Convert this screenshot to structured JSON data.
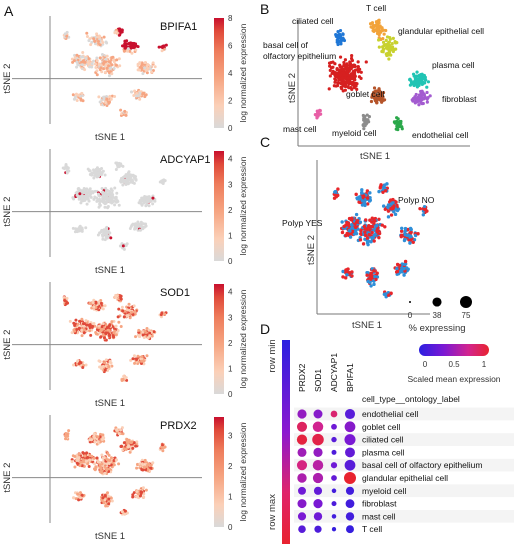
{
  "chart_data": [
    {
      "panel": "A",
      "type": "scatter",
      "xlabel": "tSNE 1",
      "ylabel": "tSNE 2",
      "colorbar_label": "log normalized expression",
      "colormap": [
        "#d9d9d9",
        "#fbd0b8",
        "#f6a582",
        "#ee7c5b",
        "#e04a3a",
        "#c8102e"
      ],
      "facets": [
        {
          "gene": "BPIFA1",
          "color_ticks": [
            0,
            2,
            4,
            6,
            8
          ],
          "color_max": 8
        },
        {
          "gene": "ADCYAP1",
          "color_ticks": [
            0,
            1,
            2,
            3,
            4
          ],
          "color_max": 4.3
        },
        {
          "gene": "SOD1",
          "color_ticks": [
            0,
            1,
            2,
            3,
            4
          ],
          "color_max": 4.3
        },
        {
          "gene": "PRDX2",
          "color_ticks": [
            0,
            1,
            2,
            3
          ],
          "color_max": 3.6
        }
      ]
    },
    {
      "panel": "B",
      "type": "scatter",
      "xlabel": "tSNE 1",
      "ylabel": "tSNE 2",
      "groups": [
        {
          "name": "ciliated cell",
          "color": "#1f77d6"
        },
        {
          "name": "T cell",
          "color": "#f2a33a"
        },
        {
          "name": "glandular epithelial cell",
          "color": "#c8d12f"
        },
        {
          "name": "basal cell of olfactory epithelium",
          "color": "#d62020"
        },
        {
          "name": "plasma cell",
          "color": "#21c4b4"
        },
        {
          "name": "goblet cell",
          "color": "#b5542a"
        },
        {
          "name": "fibroblast",
          "color": "#a35bd0"
        },
        {
          "name": "mast cell",
          "color": "#e85fa6"
        },
        {
          "name": "myeloid cell",
          "color": "#8c8c8c"
        },
        {
          "name": "endothelial cell",
          "color": "#2aa84a"
        }
      ]
    },
    {
      "panel": "C",
      "type": "scatter",
      "xlabel": "tSNE 1",
      "ylabel": "tSNE 2",
      "groups": [
        {
          "name": "Polyp YES",
          "color": "#e8262a"
        },
        {
          "name": "Polyp NO",
          "color": "#2f8fd8"
        }
      ],
      "size_legend": {
        "title": "% expressing",
        "values": [
          0,
          38,
          75
        ]
      }
    },
    {
      "panel": "D",
      "type": "dotplot",
      "genes": [
        "PRDX2",
        "SOD1",
        "ADCYAP1",
        "BPIFA1"
      ],
      "row_header": "cell_type__ontology_label",
      "cell_types": [
        "endothelial cell",
        "goblet cell",
        "ciliated cell",
        "plasma cell",
        "basal cell of olfactory epithelium",
        "glandular epithelial cell",
        "myeloid cell",
        "fibroblast",
        "mast cell",
        "T cell"
      ],
      "pct_expressing": [
        [
          40,
          38,
          18,
          50
        ],
        [
          50,
          55,
          12,
          58
        ],
        [
          52,
          68,
          10,
          62
        ],
        [
          38,
          40,
          8,
          48
        ],
        [
          50,
          55,
          15,
          58
        ],
        [
          42,
          52,
          12,
          75
        ],
        [
          28,
          30,
          6,
          30
        ],
        [
          38,
          40,
          8,
          36
        ],
        [
          30,
          32,
          6,
          32
        ],
        [
          25,
          22,
          5,
          28
        ]
      ],
      "scaled_mean": [
        [
          0.45,
          0.4,
          0.8,
          0.2
        ],
        [
          0.85,
          0.7,
          0.3,
          0.4
        ],
        [
          0.95,
          0.92,
          0.2,
          0.35
        ],
        [
          0.5,
          0.45,
          0.15,
          0.25
        ],
        [
          0.75,
          0.6,
          0.3,
          0.2
        ],
        [
          0.55,
          0.55,
          0.25,
          1.0
        ],
        [
          0.3,
          0.25,
          0.1,
          0.1
        ],
        [
          0.4,
          0.35,
          0.15,
          0.1
        ],
        [
          0.35,
          0.3,
          0.1,
          0.1
        ],
        [
          0.2,
          0.15,
          0.05,
          0.05
        ]
      ],
      "color_legend": {
        "title": "Scaled mean expression",
        "ticks": [
          0,
          0.5,
          1
        ]
      },
      "row_gradient_labels": {
        "top": "row min",
        "bottom": "row max"
      }
    }
  ],
  "labels": {
    "panel_a": "A",
    "panel_b": "B",
    "panel_c": "C",
    "panel_d": "D"
  }
}
